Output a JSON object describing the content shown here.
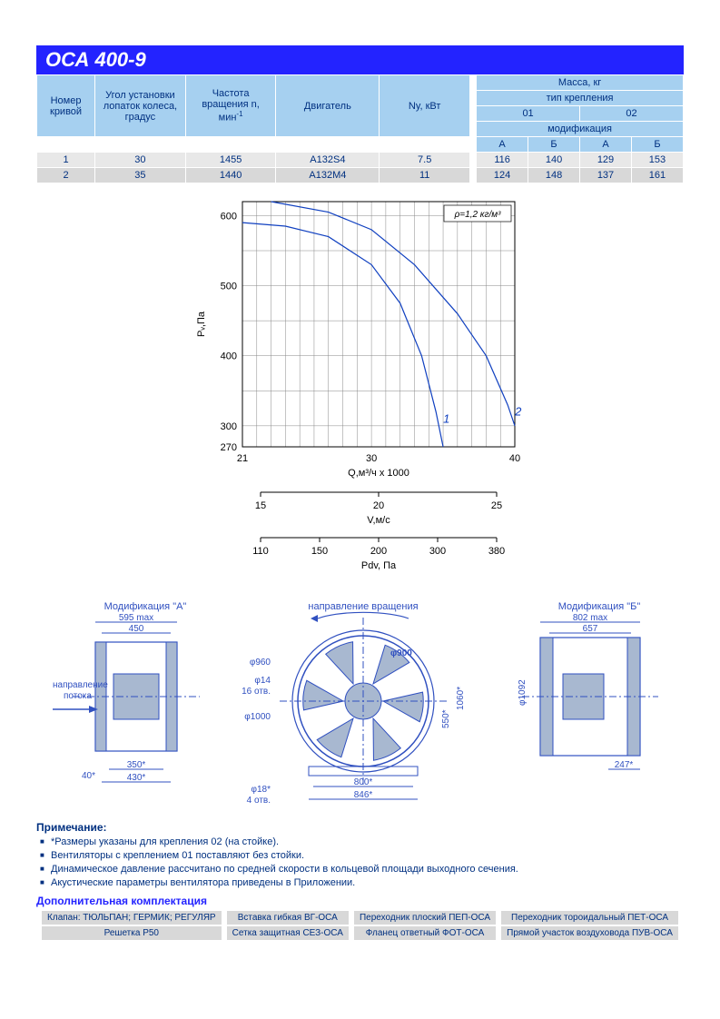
{
  "title": "ОСА 400-9",
  "table": {
    "cols": [
      "Номер кривой",
      "Угол установки лопаток колеса, градус",
      "Частота вращения n, мин",
      "Двигатель",
      "Ny, кВт"
    ],
    "mass_header": "Масса, кг",
    "mount_header": "тип крепления",
    "mount01": "01",
    "mount02": "02",
    "mod_header": "модификация",
    "A": "А",
    "B": "Б",
    "colors": {
      "header_bg": "#a6d0f0",
      "header_fg": "#003080",
      "row_odd": "#e8e8e8",
      "row_even": "#d8d8d8"
    },
    "rows": [
      {
        "n": "1",
        "ang": "30",
        "rpm": "1455",
        "motor": "A132S4",
        "ny": "7.5",
        "m": [
          "116",
          "140",
          "129",
          "153"
        ]
      },
      {
        "n": "2",
        "ang": "35",
        "rpm": "1440",
        "motor": "А132М4",
        "ny": "11",
        "m": [
          "124",
          "148",
          "137",
          "161"
        ]
      }
    ]
  },
  "chart": {
    "type": "line",
    "annotation": "ρ=1,2 кг/м³",
    "ylabel": "Pᵥ,Па",
    "ylim": [
      270,
      620
    ],
    "yticks": [
      270,
      300,
      400,
      500,
      600
    ],
    "x1": {
      "label": "Q,м³/ч x 1000",
      "lim": [
        21,
        40
      ],
      "ticks": [
        21,
        30,
        40
      ]
    },
    "x2": {
      "label": "V,м/c",
      "ticks": [
        15,
        20,
        25
      ]
    },
    "x3": {
      "label": "Pdv, Па",
      "ticks": [
        110,
        150,
        200,
        300,
        380
      ]
    },
    "grid_color": "#888",
    "axis_color": "#000",
    "curve_color": "#1040c0",
    "curves": {
      "1": {
        "label": "1",
        "pts": [
          [
            21,
            590
          ],
          [
            24,
            585
          ],
          [
            27,
            570
          ],
          [
            30,
            530
          ],
          [
            32,
            475
          ],
          [
            33.5,
            400
          ],
          [
            34.5,
            320
          ],
          [
            35,
            270
          ]
        ]
      },
      "2": {
        "label": "2",
        "pts": [
          [
            23,
            620
          ],
          [
            27,
            605
          ],
          [
            30,
            580
          ],
          [
            33,
            530
          ],
          [
            36,
            460
          ],
          [
            38,
            400
          ],
          [
            39.5,
            330
          ],
          [
            40,
            300
          ]
        ]
      }
    },
    "label_fontsize": 11
  },
  "diagrams": {
    "modA": "Модификация \"А\"",
    "modB": "Модификация \"Б\"",
    "flow_dir": "направление потока",
    "rot_dir": "направление вращения",
    "A": {
      "w_max": "595 max",
      "w": "450",
      "base": "40*",
      "base_w1": "350*",
      "base_w2": "430*"
    },
    "front": {
      "d_outer": "φ960",
      "d_inner": "φ900",
      "d_flange": "φ1000",
      "holes1": "φ14",
      "holes1_n": "16 отв.",
      "holes2": "φ18*",
      "holes2_n": "4 отв.",
      "base_w1": "800*",
      "base_w2": "846*",
      "h1": "550*",
      "h2": "1060*"
    },
    "B": {
      "w_max": "802 max",
      "w": "657",
      "base": "247*",
      "d": "φ1092"
    },
    "drawing_color": "#3050c0",
    "fill": "#a8b8d0"
  },
  "notes": {
    "header": "Примечание:",
    "items": [
      "*Размеры указаны для крепления 02 (на стойке).",
      "Вентиляторы с креплением 01 поставляют без стойки.",
      "Динамическое давление рассчитано по средней скорости в кольцевой площади выходного сечения.",
      "Акустические параметры вентилятора приведены в Приложении."
    ]
  },
  "addl": {
    "header": "Дополнительная комплектация",
    "rows": [
      [
        "Клапан: ТЮЛЬПАН; ГЕРМИК; РЕГУЛЯР",
        "Вставка гибкая ВГ-ОСА",
        "Переходник плоский ПЕП-ОСА",
        "Переходник тороидальный ПЕТ-ОСА"
      ],
      [
        "Решетка Р50",
        "Сетка защитная СЕЗ-ОСА",
        "Фланец ответный ФОТ-ОСА",
        "Прямой участок воздуховода ПУВ-ОСА"
      ]
    ]
  }
}
